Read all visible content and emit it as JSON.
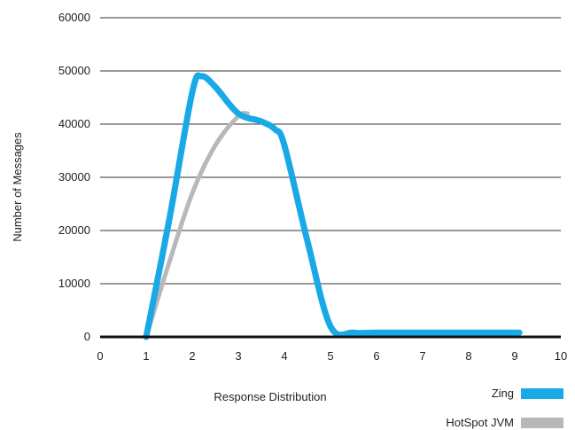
{
  "chart_data": {
    "type": "line",
    "title": "",
    "xlabel": "Response Distribution",
    "ylabel": "Number of Messages",
    "xlim": [
      0,
      10
    ],
    "ylim": [
      0,
      60000
    ],
    "x_ticks": [
      "0",
      "1",
      "2",
      "3",
      "4",
      "5",
      "6",
      "7",
      "8",
      "9",
      "10"
    ],
    "y_ticks": [
      "0",
      "10000",
      "20000",
      "30000",
      "40000",
      "50000",
      "60000"
    ],
    "grid": "horizontal",
    "legend_position": "bottom-right",
    "series": [
      {
        "name": "Zing",
        "color": "#19a9e6",
        "x": [
          1.0,
          1.5,
          2.0,
          2.2,
          2.5,
          3.0,
          3.5,
          3.8,
          4.0,
          4.5,
          5.0,
          5.5,
          6.0,
          7.0,
          8.0,
          9.1
        ],
        "y": [
          0,
          22000,
          46000,
          49000,
          47000,
          42000,
          40500,
          39000,
          36000,
          18000,
          2000,
          800,
          800,
          800,
          800,
          800
        ]
      },
      {
        "name": "HotSpot JVM",
        "color": "#b8b8b8",
        "x": [
          1.0,
          1.5,
          2.0,
          2.5,
          3.0,
          3.2
        ],
        "y": [
          0,
          14000,
          27000,
          36000,
          41500,
          42000
        ]
      }
    ]
  }
}
